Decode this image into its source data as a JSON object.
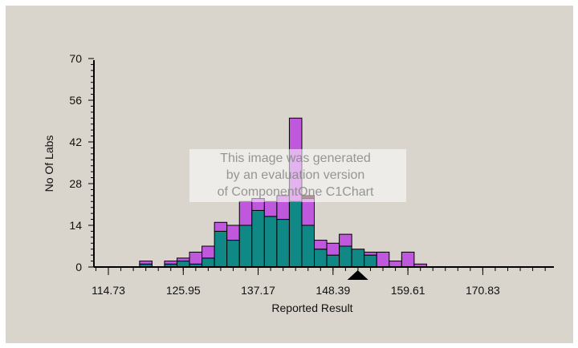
{
  "chart_data": {
    "type": "bar",
    "stacked": true,
    "xlabel": "Reported Result",
    "ylabel": "No Of Labs",
    "ylim": [
      0,
      70
    ],
    "yticks": [
      0,
      14,
      28,
      42,
      56,
      70
    ],
    "xtick_labels": [
      "114.73",
      "125.95",
      "137.17",
      "148.39",
      "159.61",
      "170.83"
    ],
    "xtick_values": [
      114.73,
      125.95,
      137.17,
      148.39,
      159.61,
      170.83
    ],
    "bin_width": 1.87,
    "bin_start": 115.665,
    "bin_count": 29,
    "series": [
      {
        "color": "#0f8886",
        "values": [
          0,
          0,
          1,
          0,
          1,
          2,
          1,
          3,
          12,
          9,
          14,
          19,
          17,
          16,
          22,
          14,
          6,
          4,
          7,
          6,
          4,
          0,
          0,
          0,
          0,
          0,
          0,
          0,
          0
        ]
      },
      {
        "color": "#bf58dc",
        "values": [
          0,
          0,
          1,
          0,
          1,
          1,
          4,
          4,
          3,
          5,
          8,
          4,
          5,
          8,
          28,
          9,
          3,
          4,
          4,
          0,
          1,
          5,
          2,
          5,
          1,
          0,
          0,
          0,
          0
        ]
      },
      {
        "color": "#5c1010",
        "values": [
          0,
          0,
          0,
          0,
          0,
          0,
          0,
          0,
          0,
          0,
          0,
          0,
          0,
          0,
          0,
          1,
          0,
          0,
          0,
          0,
          0,
          0,
          0,
          0,
          0,
          0,
          0,
          0,
          0
        ]
      }
    ],
    "marker_value": 152.1,
    "marker_color": "#000000"
  },
  "watermark": {
    "lines": [
      "This image was generated",
      "by an evaluation version",
      "of ComponentOne C1Chart"
    ]
  }
}
